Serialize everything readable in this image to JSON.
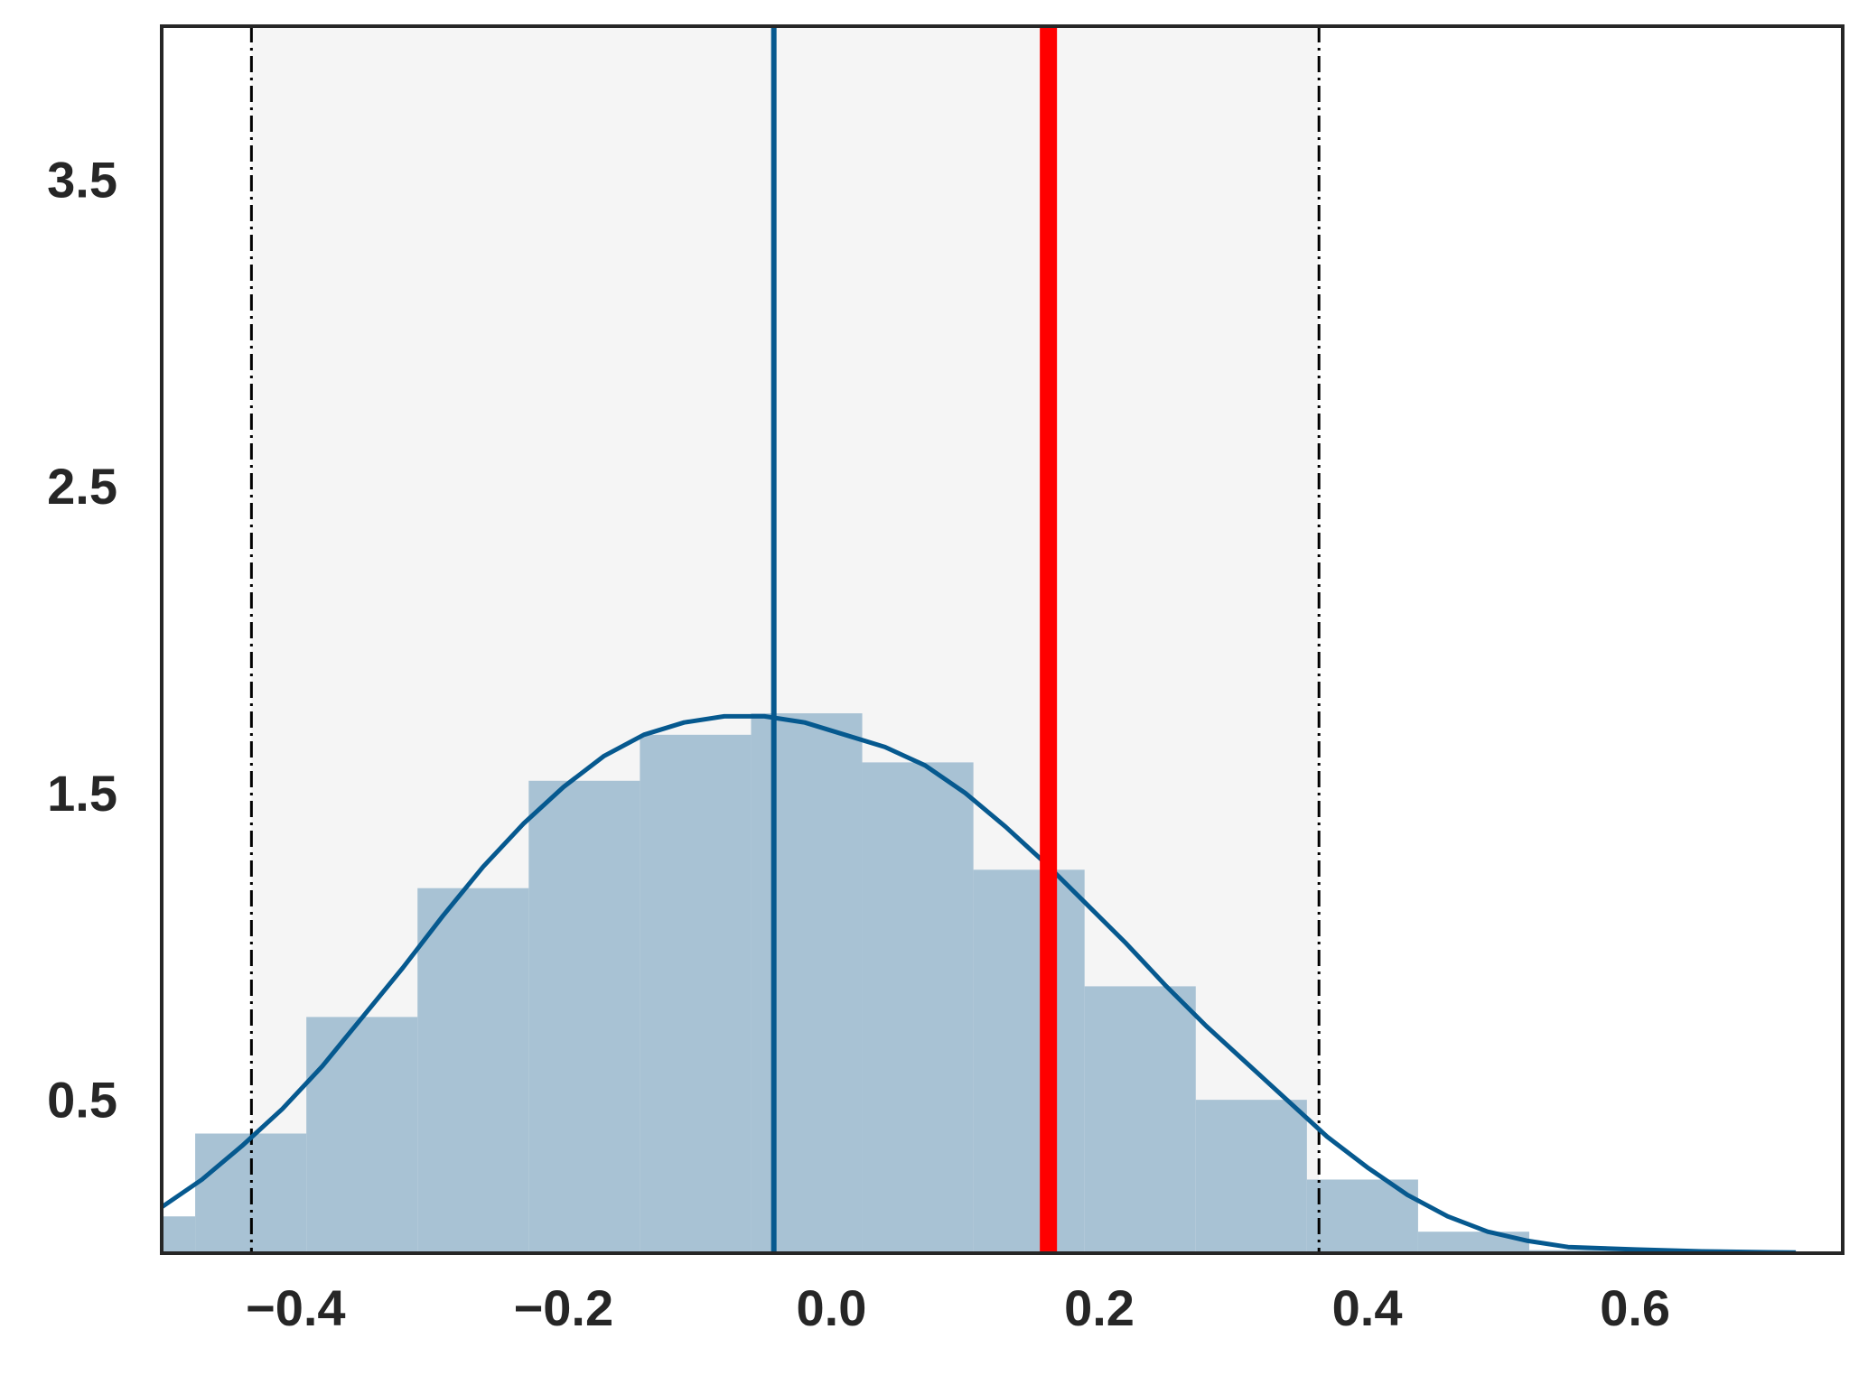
{
  "chart_data": {
    "type": "histogram",
    "xlim": [
      -0.5,
      0.755
    ],
    "ylim": [
      0,
      4.0
    ],
    "x_ticks": [
      {
        "value": -0.4,
        "label": "−0.4"
      },
      {
        "value": -0.2,
        "label": "−0.2"
      },
      {
        "value": 0.0,
        "label": "0.0"
      },
      {
        "value": 0.2,
        "label": "0.2"
      },
      {
        "value": 0.4,
        "label": "0.4"
      },
      {
        "value": 0.6,
        "label": "0.6"
      }
    ],
    "y_ticks": [
      {
        "value": 0.5,
        "label": "0.5"
      },
      {
        "value": 1.5,
        "label": "1.5"
      },
      {
        "value": 2.5,
        "label": "2.5"
      },
      {
        "value": 3.5,
        "label": "3.5"
      }
    ],
    "grid": false,
    "shaded_interval": {
      "x0": -0.433,
      "x1": 0.364,
      "color": "#f5f5f5"
    },
    "interval_lines": [
      -0.433,
      0.364
    ],
    "histogram": {
      "color": "#a8c2d4",
      "bins": [
        {
          "x0": -0.516,
          "x1": -0.475,
          "height": 0.12
        },
        {
          "x0": -0.475,
          "x1": -0.392,
          "height": 0.39
        },
        {
          "x0": -0.392,
          "x1": -0.309,
          "height": 0.77
        },
        {
          "x0": -0.309,
          "x1": -0.226,
          "height": 1.19
        },
        {
          "x0": -0.226,
          "x1": -0.143,
          "height": 1.54
        },
        {
          "x0": -0.143,
          "x1": -0.06,
          "height": 1.69
        },
        {
          "x0": -0.06,
          "x1": 0.023,
          "height": 1.76
        },
        {
          "x0": 0.023,
          "x1": 0.106,
          "height": 1.6
        },
        {
          "x0": 0.106,
          "x1": 0.189,
          "height": 1.25
        },
        {
          "x0": 0.189,
          "x1": 0.272,
          "height": 0.87
        },
        {
          "x0": 0.272,
          "x1": 0.355,
          "height": 0.5
        },
        {
          "x0": 0.355,
          "x1": 0.438,
          "height": 0.24
        },
        {
          "x0": 0.438,
          "x1": 0.521,
          "height": 0.07
        },
        {
          "x0": 0.521,
          "x1": 0.604,
          "height": 0.01
        }
      ]
    },
    "kde": {
      "color": "#06598f",
      "points": [
        [
          -0.5,
          0.15
        ],
        [
          -0.47,
          0.24
        ],
        [
          -0.44,
          0.35
        ],
        [
          -0.41,
          0.47
        ],
        [
          -0.38,
          0.61
        ],
        [
          -0.35,
          0.77
        ],
        [
          -0.32,
          0.93
        ],
        [
          -0.29,
          1.1
        ],
        [
          -0.26,
          1.26
        ],
        [
          -0.23,
          1.4
        ],
        [
          -0.2,
          1.52
        ],
        [
          -0.17,
          1.62
        ],
        [
          -0.14,
          1.69
        ],
        [
          -0.11,
          1.73
        ],
        [
          -0.08,
          1.75
        ],
        [
          -0.05,
          1.75
        ],
        [
          -0.02,
          1.73
        ],
        [
          0.01,
          1.69
        ],
        [
          0.04,
          1.65
        ],
        [
          0.07,
          1.59
        ],
        [
          0.1,
          1.5
        ],
        [
          0.13,
          1.39
        ],
        [
          0.16,
          1.27
        ],
        [
          0.19,
          1.14
        ],
        [
          0.22,
          1.01
        ],
        [
          0.25,
          0.87
        ],
        [
          0.28,
          0.74
        ],
        [
          0.31,
          0.62
        ],
        [
          0.34,
          0.5
        ],
        [
          0.37,
          0.38
        ],
        [
          0.4,
          0.28
        ],
        [
          0.43,
          0.19
        ],
        [
          0.46,
          0.12
        ],
        [
          0.49,
          0.07
        ],
        [
          0.52,
          0.04
        ],
        [
          0.55,
          0.02
        ],
        [
          0.6,
          0.012
        ],
        [
          0.65,
          0.006
        ],
        [
          0.7,
          0.003
        ],
        [
          0.72,
          0.002
        ]
      ]
    },
    "mean_line": {
      "x": -0.043,
      "color": "#06598f"
    },
    "observed_line": {
      "x": 0.162,
      "color": "#ff0000"
    }
  }
}
